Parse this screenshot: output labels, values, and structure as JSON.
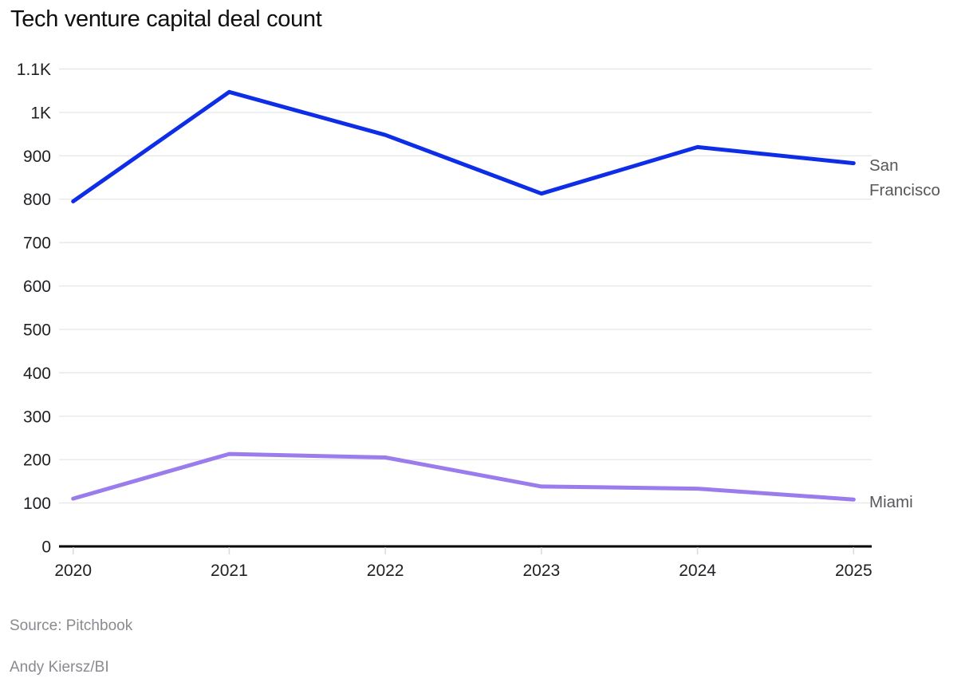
{
  "chart_data": {
    "type": "line",
    "title": "Tech venture capital deal count",
    "x": [
      2020,
      2021,
      2022,
      2023,
      2024,
      2025
    ],
    "x_labels": [
      "2020",
      "2021",
      "2022",
      "2023",
      "2024",
      "2025"
    ],
    "series": [
      {
        "name": "San Francisco",
        "color": "#0d2ee6",
        "values": [
          795,
          1047,
          948,
          813,
          920,
          883
        ]
      },
      {
        "name": "Miami",
        "color": "#9b7ced",
        "values": [
          110,
          213,
          205,
          138,
          133,
          108
        ]
      }
    ],
    "ylim": [
      0,
      1100
    ],
    "yticks": [
      {
        "value": 1100,
        "label": "1.1K"
      },
      {
        "value": 1000,
        "label": "1K"
      },
      {
        "value": 900,
        "label": "900"
      },
      {
        "value": 800,
        "label": "800"
      },
      {
        "value": 700,
        "label": "700"
      },
      {
        "value": 600,
        "label": "600"
      },
      {
        "value": 500,
        "label": "500"
      },
      {
        "value": 400,
        "label": "400"
      },
      {
        "value": 300,
        "label": "300"
      },
      {
        "value": 200,
        "label": "200"
      },
      {
        "value": 100,
        "label": "100"
      },
      {
        "value": 0,
        "label": "0"
      }
    ],
    "grid": "horizontal",
    "legend_position": "right-of-line-end",
    "colors": {
      "gridline": "#e8e8e8",
      "axis_line": "#000000",
      "x_tick_mark": "#d9d9d9",
      "tick_label": "#212125",
      "series_label": "#57575c",
      "footer_text": "#8a8a90",
      "title_text": "#0f0f10",
      "background": "#ffffff"
    }
  },
  "footer": {
    "source": "Source: Pitchbook",
    "credit": "Andy Kiersz/BI"
  }
}
